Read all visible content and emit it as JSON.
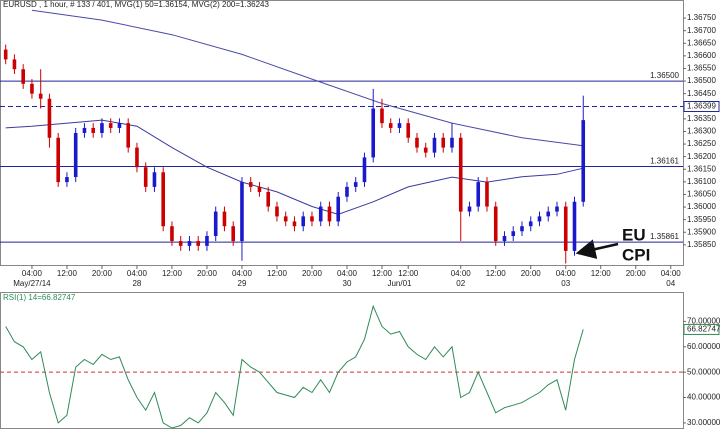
{
  "chart_data": [
    {
      "type": "candlestick",
      "title": "EURUSD , 1 hour, # 133 / 401, MVG(1) 50=1.36154, MVG(2) 200=1.36243",
      "x": [
        -6,
        -4,
        -2,
        0,
        2,
        4,
        6,
        8,
        10,
        12,
        14,
        16,
        18,
        20,
        22,
        24,
        26,
        28,
        30,
        32,
        34,
        36,
        38,
        40,
        42,
        44,
        46,
        48,
        50,
        52,
        54,
        56,
        58,
        60,
        62,
        64,
        66,
        68,
        70,
        72,
        74,
        76,
        78,
        80,
        82,
        84,
        86,
        88,
        90,
        92,
        94,
        96,
        98,
        100,
        102,
        104,
        106,
        108,
        110,
        112,
        114,
        116,
        118,
        120,
        122,
        124,
        126
      ],
      "open": [
        1.36625,
        1.36586,
        1.36547,
        1.36489,
        1.3645,
        1.3643,
        1.36275,
        1.36099,
        1.36119,
        1.36294,
        1.36314,
        1.36294,
        1.36333,
        1.36314,
        1.36333,
        1.36236,
        1.36158,
        1.3608,
        1.36138,
        1.35924,
        1.35865,
        1.35846,
        1.35865,
        1.35846,
        1.35885,
        1.35982,
        1.35924,
        1.35865,
        1.36099,
        1.3608,
        1.3606,
        1.36002,
        1.35963,
        1.35943,
        1.35924,
        1.35963,
        1.35943,
        1.36002,
        1.35943,
        1.36041,
        1.3608,
        1.36099,
        1.36197,
        1.36391,
        1.36333,
        1.36314,
        1.36333,
        1.36275,
        1.36236,
        1.36216,
        1.36275,
        1.36236,
        1.36275,
        1.35982,
        1.36002,
        1.36099,
        1.36002,
        1.35865,
        1.35885,
        1.35904,
        1.35924,
        1.35943,
        1.35963,
        1.35982,
        1.36002,
        1.35826,
        1.36021
      ],
      "high": [
        1.36645,
        1.36606,
        1.36567,
        1.36508,
        1.36547,
        1.3645,
        1.36294,
        1.36138,
        1.36314,
        1.36333,
        1.36333,
        1.36352,
        1.36352,
        1.36352,
        1.36352,
        1.36255,
        1.36177,
        1.36158,
        1.36158,
        1.35943,
        1.35885,
        1.35885,
        1.35885,
        1.35904,
        1.36002,
        1.36002,
        1.35943,
        1.36119,
        1.36119,
        1.36099,
        1.3608,
        1.36021,
        1.35982,
        1.35963,
        1.35982,
        1.35982,
        1.36021,
        1.36021,
        1.3606,
        1.36099,
        1.36119,
        1.36216,
        1.36469,
        1.3643,
        1.36352,
        1.36352,
        1.36352,
        1.36294,
        1.36255,
        1.36294,
        1.36294,
        1.36333,
        1.36294,
        1.36021,
        1.36119,
        1.36119,
        1.36021,
        1.35904,
        1.35924,
        1.35943,
        1.35963,
        1.35982,
        1.36002,
        1.36021,
        1.36021,
        1.36041,
        1.36442
      ],
      "low": [
        1.36567,
        1.36528,
        1.36469,
        1.3643,
        1.36391,
        1.36236,
        1.3608,
        1.3608,
        1.36099,
        1.36275,
        1.36275,
        1.36275,
        1.36294,
        1.36294,
        1.36216,
        1.36138,
        1.3606,
        1.3606,
        1.35904,
        1.35846,
        1.35826,
        1.35826,
        1.35826,
        1.35826,
        1.35865,
        1.35904,
        1.35846,
        1.35787,
        1.3606,
        1.36041,
        1.35982,
        1.35943,
        1.35924,
        1.35904,
        1.35904,
        1.35924,
        1.35924,
        1.35924,
        1.35924,
        1.36021,
        1.3606,
        1.3608,
        1.36177,
        1.36314,
        1.36294,
        1.36294,
        1.36255,
        1.36216,
        1.36197,
        1.36197,
        1.36216,
        1.36216,
        1.35865,
        1.35963,
        1.35982,
        1.35982,
        1.35846,
        1.35846,
        1.35865,
        1.35885,
        1.35904,
        1.35924,
        1.35943,
        1.35963,
        1.35776,
        1.35807,
        1.36002
      ],
      "close": [
        1.36586,
        1.36547,
        1.36489,
        1.3645,
        1.3643,
        1.36275,
        1.36099,
        1.36119,
        1.36294,
        1.36314,
        1.36294,
        1.36333,
        1.36314,
        1.36333,
        1.36236,
        1.36158,
        1.3608,
        1.36138,
        1.35924,
        1.35865,
        1.35846,
        1.35865,
        1.35846,
        1.35885,
        1.35982,
        1.35924,
        1.35865,
        1.36099,
        1.3608,
        1.3606,
        1.36002,
        1.35963,
        1.35943,
        1.35924,
        1.35963,
        1.35943,
        1.36002,
        1.35943,
        1.36041,
        1.3608,
        1.36099,
        1.36197,
        1.36391,
        1.36333,
        1.36314,
        1.36333,
        1.36275,
        1.36236,
        1.36216,
        1.36275,
        1.36236,
        1.36275,
        1.35982,
        1.36002,
        1.36099,
        1.36002,
        1.35865,
        1.35885,
        1.35904,
        1.35924,
        1.35943,
        1.35963,
        1.35982,
        1.36002,
        1.35826,
        1.36021,
        1.36345
      ],
      "up_color": "#1a1acc",
      "down_color": "#cc0000",
      "moving_averages": [
        {
          "color": "#3a3aa0",
          "x": [
            -6,
            0,
            16,
            24,
            32,
            40,
            48,
            56,
            64,
            70,
            78,
            86,
            96,
            104,
            112,
            120,
            126
          ],
          "values": [
            1.36314,
            1.36321,
            1.36345,
            1.36321,
            1.36236,
            1.36158,
            1.36099,
            1.3606,
            1.36002,
            1.35971,
            1.36021,
            1.3608,
            1.36119,
            1.36099,
            1.3612,
            1.3613,
            1.36154
          ]
        },
        {
          "color": "#4a4aa8",
          "x": [
            0,
            16,
            32,
            48,
            64,
            80,
            96,
            112,
            126
          ],
          "values": [
            1.36781,
            1.36742,
            1.36684,
            1.36606,
            1.36508,
            1.36411,
            1.36333,
            1.36275,
            1.36243
          ]
        }
      ],
      "hlines": [
        {
          "value": 1.365,
          "label": "1.36500",
          "style": "solid"
        },
        {
          "value": 1.36399,
          "label": "1.36399",
          "style": "dashed"
        },
        {
          "value": 1.36161,
          "label": "1.36161",
          "style": "solid"
        },
        {
          "value": 1.35861,
          "label": "1.35861",
          "style": "solid"
        }
      ],
      "hline_color": "#23239a",
      "annotation": [
        "EU",
        "CPI"
      ],
      "xlim": [
        -7.3,
        148.8
      ],
      "xticks": [
        {
          "value": 0,
          "label": "04:00"
        },
        {
          "value": 8,
          "label": "12:00"
        },
        {
          "value": 16,
          "label": "20:00"
        },
        {
          "value": 24,
          "label": "04:00"
        },
        {
          "value": 32,
          "label": "12:00"
        },
        {
          "value": 40,
          "label": "20:00"
        },
        {
          "value": 48,
          "label": "04:00"
        },
        {
          "value": 56,
          "label": "12:00"
        },
        {
          "value": 64,
          "label": "20:00"
        },
        {
          "value": 72,
          "label": "04:00"
        },
        {
          "value": 80,
          "label": "12:00"
        },
        {
          "value": 86,
          "label": "12:00"
        },
        {
          "value": 98,
          "label": "04:00"
        },
        {
          "value": 106,
          "label": "12:00"
        },
        {
          "value": 114,
          "label": "20:00"
        },
        {
          "value": 122,
          "label": "04:00"
        },
        {
          "value": 130,
          "label": "12:00"
        },
        {
          "value": 138,
          "label": "20:00"
        },
        {
          "value": 146,
          "label": "04:00"
        }
      ],
      "date_ticks": [
        {
          "value": 0,
          "label": "May/27/14"
        },
        {
          "value": 24,
          "label": "28"
        },
        {
          "value": 48,
          "label": "29"
        },
        {
          "value": 72,
          "label": "30"
        },
        {
          "value": 84,
          "label": "Jun/01"
        },
        {
          "value": 98,
          "label": "02"
        },
        {
          "value": 122,
          "label": "03"
        },
        {
          "value": 146,
          "label": "04"
        }
      ],
      "ylim": [
        1.3577,
        1.3679
      ],
      "yticks": [
        {
          "value": 1.3585,
          "label": "1.35850"
        },
        {
          "value": 1.359,
          "label": "1.35900"
        },
        {
          "value": 1.3595,
          "label": "1.35950"
        },
        {
          "value": 1.36,
          "label": "1.36000"
        },
        {
          "value": 1.3605,
          "label": "1.36050"
        },
        {
          "value": 1.361,
          "label": "1.36100"
        },
        {
          "value": 1.3615,
          "label": "1.36150"
        },
        {
          "value": 1.362,
          "label": "1.36200"
        },
        {
          "value": 1.3625,
          "label": "1.36250"
        },
        {
          "value": 1.363,
          "label": "1.36300"
        },
        {
          "value": 1.3635,
          "label": "1.36350"
        },
        {
          "value": 1.364,
          "label": "1.36400"
        },
        {
          "value": 1.3645,
          "label": "1.36450"
        },
        {
          "value": 1.365,
          "label": "1.36500"
        },
        {
          "value": 1.3655,
          "label": "1.36550"
        },
        {
          "value": 1.366,
          "label": "1.36600"
        },
        {
          "value": 1.3665,
          "label": "1.36650"
        },
        {
          "value": 1.367,
          "label": "1.36700"
        },
        {
          "value": 1.3675,
          "label": "1.36750"
        }
      ]
    },
    {
      "type": "line",
      "title": "RSI(1) 14=66.82747",
      "color": "#2e8b57",
      "x": [
        -6,
        -4,
        -2,
        0,
        2,
        4,
        6,
        8,
        10,
        12,
        14,
        16,
        18,
        20,
        22,
        24,
        26,
        28,
        30,
        32,
        34,
        36,
        38,
        40,
        42,
        44,
        46,
        48,
        50,
        52,
        54,
        56,
        58,
        60,
        62,
        64,
        66,
        68,
        70,
        72,
        74,
        76,
        78,
        80,
        82,
        84,
        86,
        88,
        90,
        92,
        94,
        96,
        98,
        100,
        102,
        104,
        106,
        108,
        110,
        112,
        114,
        116,
        118,
        120,
        122,
        124,
        126
      ],
      "values": [
        68,
        62,
        60,
        55,
        58,
        42,
        30,
        33,
        52,
        55,
        53,
        57,
        55,
        56,
        47,
        40,
        35,
        42,
        30,
        28,
        29,
        32,
        30,
        34,
        42,
        38,
        33,
        55,
        52,
        50,
        46,
        42,
        41,
        40,
        44,
        42,
        47,
        42,
        50,
        54,
        56,
        63,
        76,
        68,
        65,
        66,
        60,
        57,
        55,
        60,
        56,
        60,
        40,
        42,
        50,
        42,
        34,
        36,
        37,
        38,
        40,
        42,
        45,
        47,
        35,
        55,
        66.82747
      ],
      "level": 50,
      "level_color": "#cc3333",
      "xlim": [
        -7.3,
        148.8
      ],
      "ylim": [
        28,
        80
      ],
      "yticks": [
        {
          "value": 30,
          "label": "30.000000"
        },
        {
          "value": 40,
          "label": "40.000000"
        },
        {
          "value": 50,
          "label": "50.000000"
        },
        {
          "value": 60,
          "label": "60.000000"
        },
        {
          "value": 70,
          "label": "70.000000"
        }
      ]
    }
  ]
}
